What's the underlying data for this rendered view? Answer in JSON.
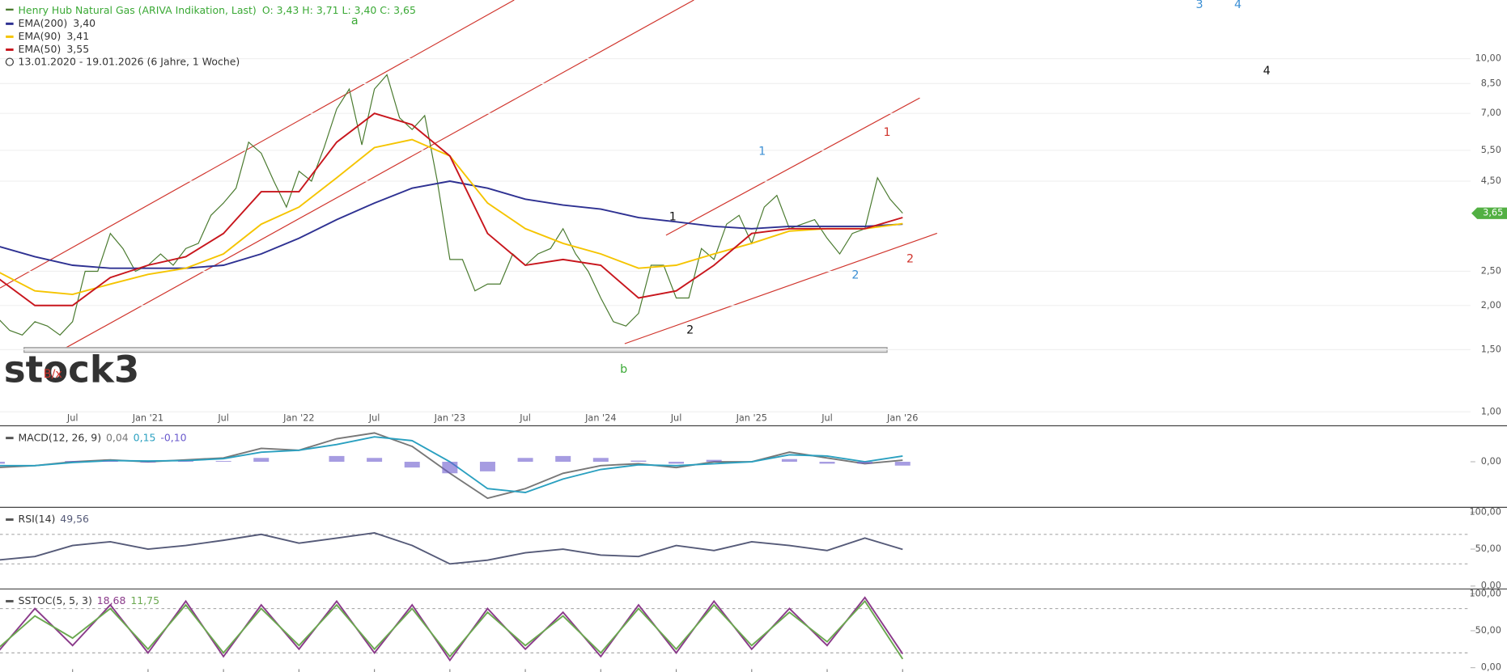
{
  "chart_data": [
    {
      "type": "line",
      "log": true,
      "title": "Henry Hub Natural Gas (ARIVA Indikation, Last)",
      "ohlc": "O: 3,43  H: 3,71  L: 3,40  C: 3,65",
      "date_range": "13.01.2020 - 19.01.2026   (6 Jahre, 1 Woche)",
      "watermark": "stock3",
      "last": {
        "value": 3.65,
        "label": "3,65"
      },
      "xlim": [
        "2020-01",
        "2029-10"
      ],
      "xticks": [
        {
          "value": "2020-07",
          "label": "Jul"
        },
        {
          "value": "2021-01",
          "label": "Jan '21"
        },
        {
          "value": "2021-07",
          "label": "Jul"
        },
        {
          "value": "2022-01",
          "label": "Jan '22"
        },
        {
          "value": "2022-07",
          "label": "Jul"
        },
        {
          "value": "2023-01",
          "label": "Jan '23"
        },
        {
          "value": "2023-07",
          "label": "Jul"
        },
        {
          "value": "2024-01",
          "label": "Jan '24"
        },
        {
          "value": "2024-07",
          "label": "Jul"
        },
        {
          "value": "2025-01",
          "label": "Jan '25"
        },
        {
          "value": "2025-07",
          "label": "Jul"
        },
        {
          "value": "2026-01",
          "label": "Jan '26"
        }
      ],
      "ylim": [
        0.916,
        14.66
      ],
      "yticks": [
        {
          "value": 1,
          "label": "1,00"
        },
        {
          "value": 1.5,
          "label": "1,50"
        },
        {
          "value": 2,
          "label": "2,00"
        },
        {
          "value": 2.5,
          "label": "2,50"
        },
        {
          "value": 4.5,
          "label": "4,50"
        },
        {
          "value": 5.5,
          "label": "5,50"
        },
        {
          "value": 7,
          "label": "7,00"
        },
        {
          "value": 8.5,
          "label": "8,50"
        },
        {
          "value": 10,
          "label": "10,00"
        }
      ],
      "grid": true,
      "series": [
        {
          "name": "Henry Hub Natural Gas",
          "color": "#4a7a2f",
          "x": [
            "2020-01",
            "2020-02",
            "2020-03",
            "2020-04",
            "2020-05",
            "2020-06",
            "2020-07",
            "2020-08",
            "2020-09",
            "2020-10",
            "2020-11",
            "2020-12",
            "2021-01",
            "2021-02",
            "2021-03",
            "2021-04",
            "2021-05",
            "2021-06",
            "2021-07",
            "2021-08",
            "2021-09",
            "2021-10",
            "2021-11",
            "2021-12",
            "2022-01",
            "2022-02",
            "2022-03",
            "2022-04",
            "2022-05",
            "2022-06",
            "2022-07",
            "2022-08",
            "2022-09",
            "2022-10",
            "2022-11",
            "2022-12",
            "2023-01",
            "2023-02",
            "2023-03",
            "2023-04",
            "2023-05",
            "2023-06",
            "2023-07",
            "2023-08",
            "2023-09",
            "2023-10",
            "2023-11",
            "2023-12",
            "2024-01",
            "2024-02",
            "2024-03",
            "2024-04",
            "2024-05",
            "2024-06",
            "2024-07",
            "2024-08",
            "2024-09",
            "2024-10",
            "2024-11",
            "2024-12",
            "2025-01",
            "2025-02",
            "2025-03",
            "2025-04",
            "2025-05",
            "2025-06",
            "2025-07",
            "2025-08",
            "2025-09",
            "2025-10",
            "2025-11",
            "2025-12",
            "2026-01"
          ],
          "values": [
            1.85,
            1.7,
            1.65,
            1.8,
            1.75,
            1.65,
            1.8,
            2.5,
            2.5,
            3.2,
            2.9,
            2.5,
            2.6,
            2.8,
            2.6,
            2.9,
            3.0,
            3.6,
            3.9,
            4.3,
            5.8,
            5.4,
            4.5,
            3.8,
            4.8,
            4.5,
            5.6,
            7.2,
            8.2,
            5.7,
            8.2,
            9.0,
            6.8,
            6.3,
            6.9,
            4.5,
            2.7,
            2.7,
            2.2,
            2.3,
            2.3,
            2.8,
            2.6,
            2.8,
            2.9,
            3.3,
            2.8,
            2.5,
            2.1,
            1.8,
            1.75,
            1.9,
            2.6,
            2.6,
            2.1,
            2.1,
            2.9,
            2.7,
            3.4,
            3.6,
            3.0,
            3.8,
            4.1,
            3.3,
            3.4,
            3.5,
            3.1,
            2.8,
            3.2,
            3.3,
            4.6,
            4.0,
            3.65
          ]
        },
        {
          "name": "EMA(200)",
          "legend_value": "3,40",
          "color": "#2e3192",
          "x": [
            "2020-01",
            "2020-04",
            "2020-07",
            "2020-10",
            "2021-01",
            "2021-04",
            "2021-07",
            "2021-10",
            "2022-01",
            "2022-04",
            "2022-07",
            "2022-10",
            "2023-01",
            "2023-04",
            "2023-07",
            "2023-10",
            "2024-01",
            "2024-04",
            "2024-07",
            "2024-10",
            "2025-01",
            "2025-04",
            "2025-07",
            "2025-10",
            "2026-01"
          ],
          "values": [
            2.95,
            2.75,
            2.6,
            2.55,
            2.55,
            2.55,
            2.6,
            2.8,
            3.1,
            3.5,
            3.9,
            4.3,
            4.5,
            4.3,
            4.0,
            3.85,
            3.75,
            3.55,
            3.45,
            3.35,
            3.3,
            3.35,
            3.35,
            3.35,
            3.4
          ]
        },
        {
          "name": "EMA(90)",
          "legend_value": "3,41",
          "color": "#f5c400",
          "x": [
            "2020-01",
            "2020-04",
            "2020-07",
            "2020-10",
            "2021-01",
            "2021-04",
            "2021-07",
            "2021-10",
            "2022-01",
            "2022-04",
            "2022-07",
            "2022-10",
            "2023-01",
            "2023-04",
            "2023-07",
            "2023-10",
            "2024-01",
            "2024-04",
            "2024-07",
            "2024-10",
            "2025-01",
            "2025-04",
            "2025-07",
            "2025-10",
            "2026-01"
          ],
          "values": [
            2.5,
            2.2,
            2.15,
            2.3,
            2.45,
            2.55,
            2.8,
            3.4,
            3.8,
            4.6,
            5.6,
            5.9,
            5.3,
            3.9,
            3.3,
            3.0,
            2.8,
            2.55,
            2.6,
            2.8,
            3.0,
            3.25,
            3.3,
            3.3,
            3.41
          ]
        },
        {
          "name": "EMA(50)",
          "legend_value": "3,55",
          "color": "#c8161d",
          "x": [
            "2020-01",
            "2020-04",
            "2020-07",
            "2020-10",
            "2021-01",
            "2021-04",
            "2021-07",
            "2021-10",
            "2022-01",
            "2022-04",
            "2022-07",
            "2022-10",
            "2023-01",
            "2023-04",
            "2023-07",
            "2023-10",
            "2024-01",
            "2024-04",
            "2024-07",
            "2024-10",
            "2025-01",
            "2025-04",
            "2025-07",
            "2025-10",
            "2026-01"
          ],
          "values": [
            2.4,
            2.0,
            2.0,
            2.4,
            2.6,
            2.75,
            3.2,
            4.2,
            4.2,
            5.8,
            7.0,
            6.5,
            5.3,
            3.2,
            2.6,
            2.7,
            2.6,
            2.1,
            2.2,
            2.6,
            3.2,
            3.3,
            3.3,
            3.3,
            3.55
          ]
        }
      ],
      "annotations": [
        {
          "text": "a",
          "color": "#3aa935"
        },
        {
          "text": "b",
          "color": "#3aa935"
        },
        {
          "text": "B/x",
          "color": "#d0342c"
        },
        {
          "text": "1",
          "color": "#111"
        },
        {
          "text": "2",
          "color": "#111"
        },
        {
          "text": "1",
          "color": "#3b8fd4"
        },
        {
          "text": "2",
          "color": "#3b8fd4"
        },
        {
          "text": "1",
          "color": "#d0342c"
        },
        {
          "text": "2",
          "color": "#d0342c"
        },
        {
          "text": "3",
          "color": "#3b8fd4"
        },
        {
          "text": "4",
          "color": "#3b8fd4"
        },
        {
          "text": "4",
          "color": "#111"
        }
      ]
    },
    {
      "type": "macd",
      "title": "MACD(12, 26, 9)",
      "legend_values": [
        "0,04",
        "0,15",
        "-0,10"
      ],
      "ylim": [
        -1.15,
        0.85
      ],
      "yticks": [
        {
          "value": 0,
          "label": "0,00"
        }
      ],
      "x": [
        "2020-01",
        "2020-04",
        "2020-07",
        "2020-10",
        "2021-01",
        "2021-04",
        "2021-07",
        "2021-10",
        "2022-01",
        "2022-04",
        "2022-07",
        "2022-10",
        "2023-01",
        "2023-04",
        "2023-07",
        "2023-10",
        "2024-01",
        "2024-04",
        "2024-07",
        "2024-10",
        "2025-01",
        "2025-04",
        "2025-07",
        "2025-10",
        "2026-01"
      ],
      "series": [
        {
          "name": "MACD",
          "color": "#777",
          "values": [
            -0.15,
            -0.1,
            0.0,
            0.05,
            0.0,
            0.05,
            0.1,
            0.35,
            0.3,
            0.6,
            0.75,
            0.4,
            -0.3,
            -0.95,
            -0.7,
            -0.3,
            -0.1,
            -0.05,
            -0.15,
            0.0,
            0.0,
            0.25,
            0.1,
            -0.05,
            0.04
          ]
        },
        {
          "name": "Signal",
          "color": "#2aa0c0",
          "values": [
            -0.1,
            -0.1,
            -0.02,
            0.03,
            0.02,
            0.03,
            0.08,
            0.25,
            0.3,
            0.45,
            0.65,
            0.55,
            0.0,
            -0.7,
            -0.8,
            -0.45,
            -0.2,
            -0.08,
            -0.1,
            -0.05,
            0.0,
            0.18,
            0.15,
            0.0,
            0.15
          ]
        },
        {
          "name": "Histogram",
          "color": "#6a5acd",
          "bars": true,
          "values": [
            -0.05,
            0,
            0.02,
            0.02,
            -0.02,
            0.02,
            0.02,
            0.1,
            0,
            0.15,
            0.1,
            -0.15,
            -0.3,
            -0.25,
            0.1,
            0.15,
            0.1,
            0.03,
            -0.05,
            0.05,
            0,
            0.07,
            -0.05,
            -0.05,
            -0.1
          ]
        }
      ]
    },
    {
      "type": "line",
      "title": "RSI(14)",
      "legend_values": [
        "49,56"
      ],
      "ylim": [
        -2,
        102
      ],
      "yticks": [
        {
          "value": 100,
          "label": "100,00"
        },
        {
          "value": 50,
          "label": "50,00"
        },
        {
          "value": 0,
          "label": "0,00"
        }
      ],
      "dashed": [
        70,
        30
      ],
      "x": [
        "2020-01",
        "2020-04",
        "2020-07",
        "2020-10",
        "2021-01",
        "2021-04",
        "2021-07",
        "2021-10",
        "2022-01",
        "2022-04",
        "2022-07",
        "2022-10",
        "2023-01",
        "2023-04",
        "2023-07",
        "2023-10",
        "2024-01",
        "2024-04",
        "2024-07",
        "2024-10",
        "2025-01",
        "2025-04",
        "2025-07",
        "2025-10",
        "2026-01"
      ],
      "series": [
        {
          "name": "RSI",
          "color": "#555a78",
          "values": [
            35,
            40,
            55,
            60,
            50,
            55,
            62,
            70,
            58,
            65,
            72,
            55,
            30,
            35,
            45,
            50,
            42,
            40,
            55,
            48,
            60,
            55,
            48,
            65,
            49.56
          ]
        }
      ]
    },
    {
      "type": "line",
      "title": "SSTOC(5, 5, 3)",
      "legend_values": [
        "18,68",
        "11,75"
      ],
      "ylim": [
        -2,
        102
      ],
      "yticks": [
        {
          "value": 100,
          "label": "100,00"
        },
        {
          "value": 50,
          "label": "50,00"
        },
        {
          "value": 0,
          "label": "0,00"
        }
      ],
      "dashed": [
        80,
        20
      ],
      "x": [
        "2020-01",
        "2020-04",
        "2020-07",
        "2020-10",
        "2021-01",
        "2021-04",
        "2021-07",
        "2021-10",
        "2022-01",
        "2022-04",
        "2022-07",
        "2022-10",
        "2023-01",
        "2023-04",
        "2023-07",
        "2023-10",
        "2024-01",
        "2024-04",
        "2024-07",
        "2024-10",
        "2025-01",
        "2025-04",
        "2025-07",
        "2025-10",
        "2026-01"
      ],
      "series": [
        {
          "name": "%K",
          "color": "#8a3a8a",
          "values": [
            20,
            80,
            30,
            85,
            20,
            90,
            15,
            85,
            25,
            90,
            20,
            85,
            10,
            80,
            25,
            75,
            15,
            85,
            20,
            90,
            25,
            80,
            30,
            95,
            18.68
          ]
        },
        {
          "name": "%D",
          "color": "#6aa84f",
          "values": [
            25,
            70,
            40,
            80,
            25,
            85,
            20,
            80,
            30,
            85,
            25,
            80,
            15,
            75,
            30,
            70,
            20,
            80,
            25,
            85,
            30,
            75,
            35,
            90,
            11.75
          ]
        }
      ]
    }
  ]
}
